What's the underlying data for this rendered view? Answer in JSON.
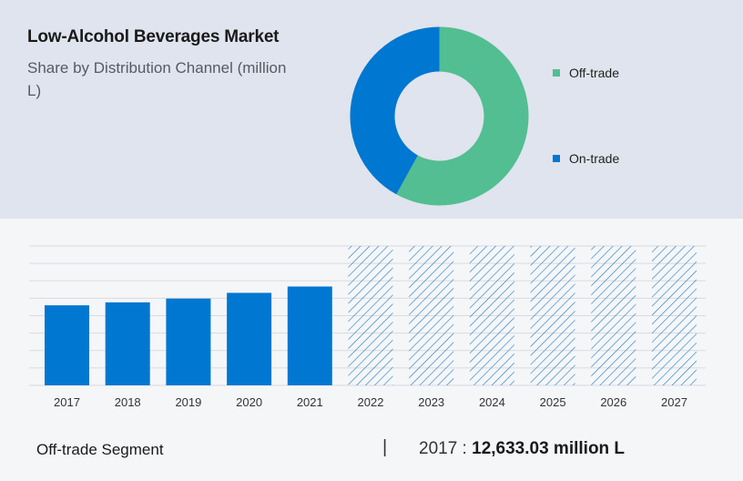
{
  "header": {
    "title": "Low-Alcohol Beverages Market",
    "subtitle": "Share by Distribution Channel (million L)"
  },
  "colors": {
    "off_trade": "#52be92",
    "on_trade": "#0077d0",
    "top_panel": "#dfe4ee",
    "bottom_panel": "#f5f6f8",
    "hatch": "#1b78c8"
  },
  "footer": {
    "segment": "Off-trade Segment",
    "separator": "|",
    "year": "2017",
    "colon": " : ",
    "value": "12,633.03 million L"
  },
  "chart_data": [
    {
      "type": "pie",
      "subtype": "donut",
      "labels": [
        "Off-trade",
        "On-trade"
      ],
      "values": [
        58,
        42
      ],
      "colors": [
        "#52be92",
        "#0077d0"
      ],
      "legend_position": "right"
    },
    {
      "type": "bar",
      "categories": [
        "2017",
        "2018",
        "2019",
        "2020",
        "2021",
        "2022",
        "2023",
        "2024",
        "2025",
        "2026",
        "2027"
      ],
      "values": [
        12633.03,
        13100,
        13700,
        14600,
        15600,
        null,
        null,
        null,
        null,
        null,
        null
      ],
      "forecast_categories": [
        "2022",
        "2023",
        "2024",
        "2025",
        "2026",
        "2027"
      ],
      "ylim": [
        0,
        22000
      ],
      "grid": true,
      "y_tick_labels_shown": false
    }
  ]
}
